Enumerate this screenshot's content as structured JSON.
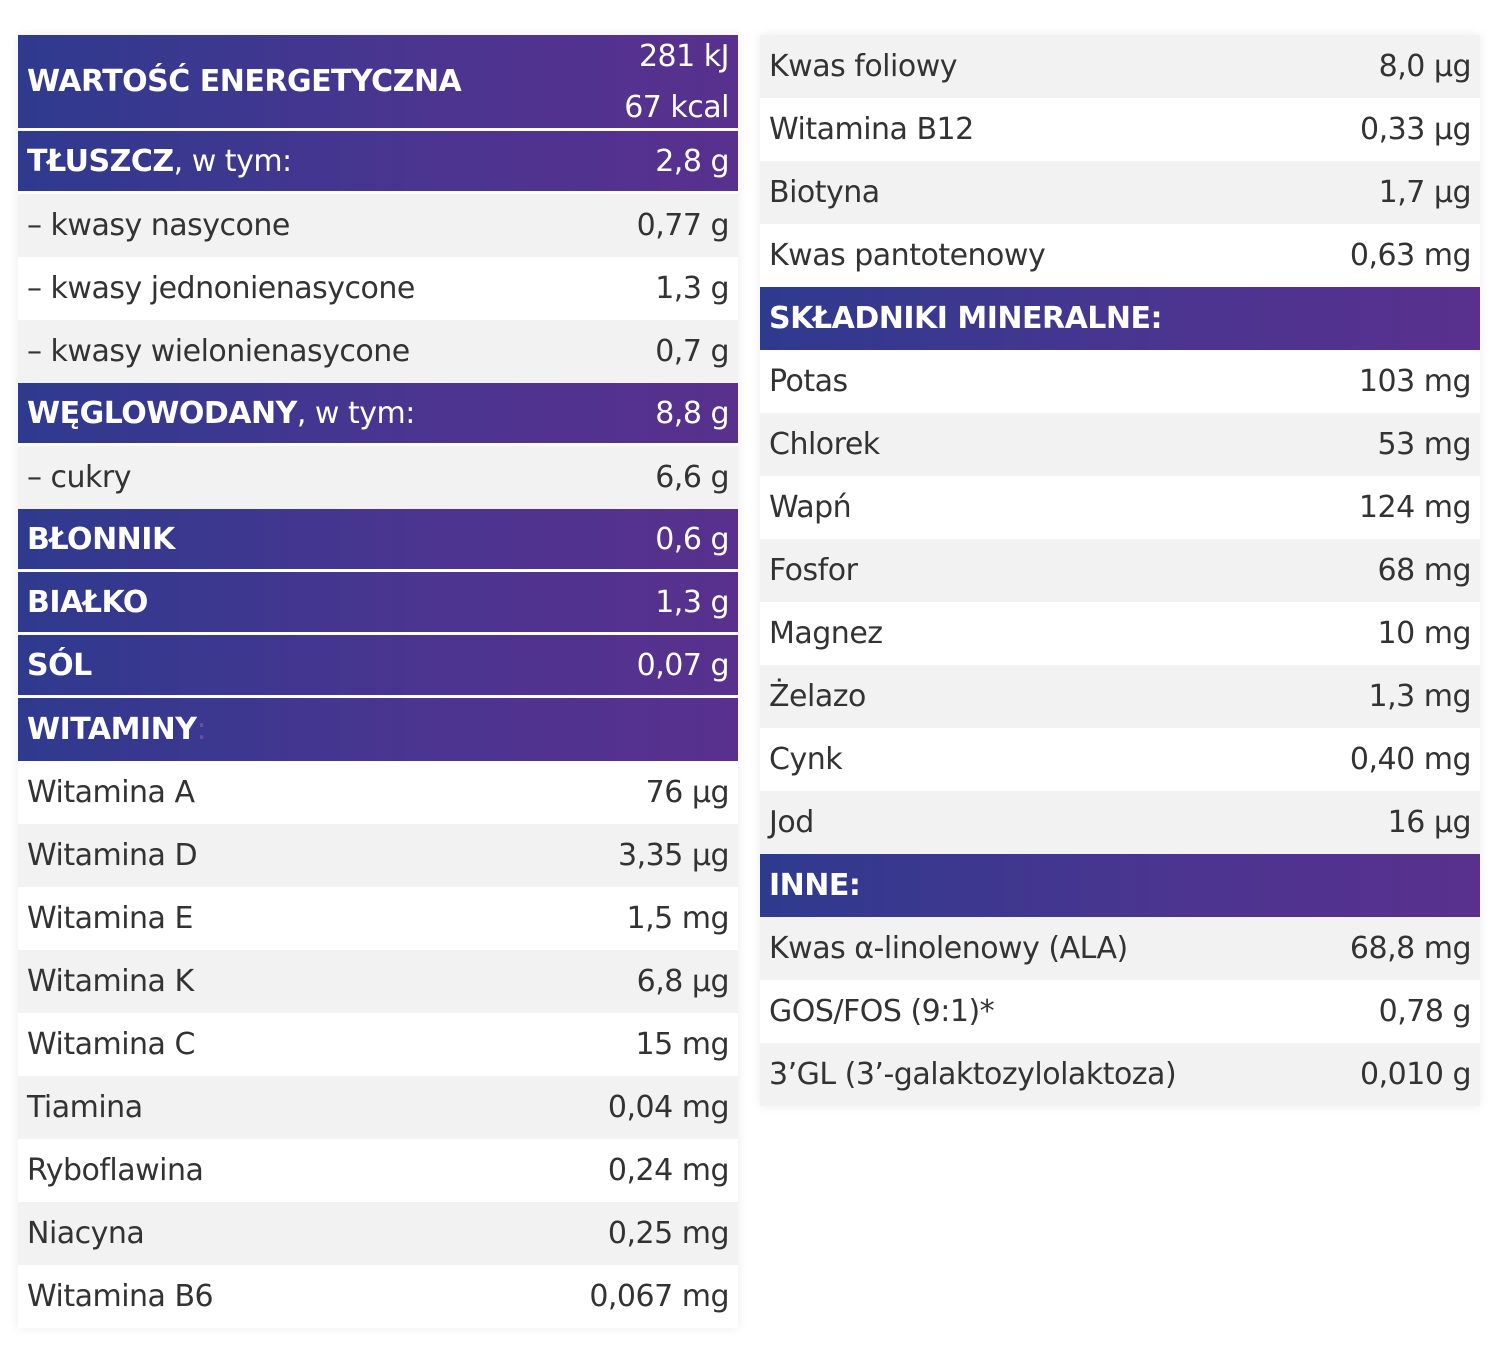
{
  "left": {
    "energy": {
      "label": "WARTOŚĆ ENERGETYCZNA",
      "value1": "281 kJ",
      "value2": "67 kcal"
    },
    "fat": {
      "label": "TŁUSZCZ",
      "suffix": ", w tym:",
      "value": "2,8 g"
    },
    "fat_rows": [
      {
        "label": "– kwasy nasycone",
        "value": "0,77 g"
      },
      {
        "label": "– kwasy jednonienasycone",
        "value": "1,3 g"
      },
      {
        "label": "– kwasy wielonienasycone",
        "value": "0,7 g"
      }
    ],
    "carbs": {
      "label": "WĘGLOWODANY",
      "suffix": ", w tym:",
      "value": "8,8 g"
    },
    "sugars": {
      "label": "– cukry",
      "value": "6,6 g"
    },
    "fiber": {
      "label": "BŁONNIK",
      "value": "0,6 g"
    },
    "protein": {
      "label": "BIAŁKO",
      "value": "1,3 g"
    },
    "salt": {
      "label": "SÓL",
      "value": "0,07 g"
    },
    "vitamins": {
      "label": "WITAMINY",
      "colon": ":",
      "rows": [
        {
          "label": "Witamina A",
          "value": "76 µg"
        },
        {
          "label": "Witamina D",
          "value": "3,35 µg"
        },
        {
          "label": "Witamina E",
          "value": "1,5 mg"
        },
        {
          "label": "Witamina K",
          "value": "6,8 µg"
        },
        {
          "label": "Witamina C",
          "value": "15 mg"
        },
        {
          "label": "Tiamina",
          "value": "0,04 mg"
        },
        {
          "label": "Ryboflawina",
          "value": "0,24 mg"
        },
        {
          "label": "Niacyna",
          "value": "0,25 mg"
        },
        {
          "label": "Witamina B6",
          "value": "0,067 mg"
        }
      ]
    }
  },
  "right": {
    "vitamin_rows": [
      {
        "label": "Kwas foliowy",
        "value": "8,0 µg"
      },
      {
        "label": "Witamina B12",
        "value": "0,33 µg"
      },
      {
        "label": "Biotyna",
        "value": "1,7 µg"
      },
      {
        "label": "Kwas pantotenowy",
        "value": "0,63 mg"
      }
    ],
    "minerals": {
      "label": "SKŁADNIKI MINERALNE:",
      "rows": [
        {
          "label": "Potas",
          "value": "103 mg"
        },
        {
          "label": "Chlorek",
          "value": "53 mg"
        },
        {
          "label": "Wapń",
          "value": "124 mg"
        },
        {
          "label": "Fosfor",
          "value": "68 mg"
        },
        {
          "label": "Magnez",
          "value": "10 mg"
        },
        {
          "label": "Żelazo",
          "value": "1,3 mg"
        },
        {
          "label": "Cynk",
          "value": "0,40 mg"
        },
        {
          "label": "Jod",
          "value": "16 µg"
        }
      ]
    },
    "other": {
      "label": "INNE:",
      "rows": [
        {
          "label": "Kwas α-linolenowy (ALA)",
          "value": "68,8 mg"
        },
        {
          "label": "GOS/FOS (9:1)*",
          "value": "0,78 g"
        },
        {
          "label": "3’GL (3’-galaktozylolaktoza)",
          "value": "0,010 g"
        }
      ]
    }
  }
}
